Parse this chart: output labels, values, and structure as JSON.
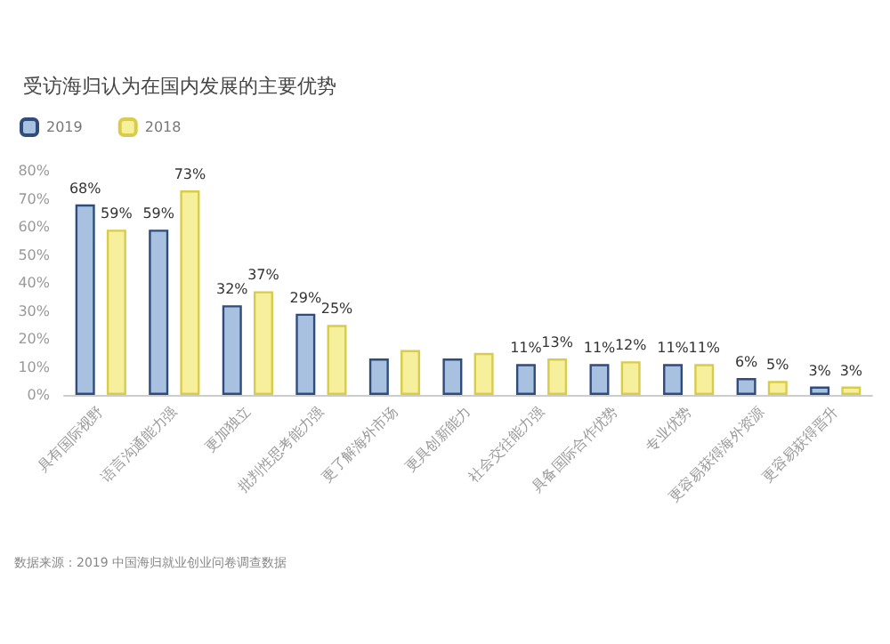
{
  "chart_data": {
    "type": "bar",
    "title": "受访海归认为在国内发展的主要优势",
    "categories": [
      "具有国际视野",
      "语言沟通能力强",
      "更加独立",
      "批判性思考能力强",
      "更了解海外市场",
      "更具创新能力",
      "社会交往能力强",
      "具备国际合作优势",
      "专业优势",
      "更容易获得海外资源",
      "更容易获得晋升"
    ],
    "series": [
      {
        "name": "2019",
        "color": "#a9c1e0",
        "values": [
          68,
          59,
          32,
          29,
          13,
          13,
          11,
          11,
          11,
          6,
          3
        ],
        "value_labels": [
          "68%",
          "59%",
          "32%",
          "29%",
          null,
          null,
          "11%",
          "11%",
          "11%",
          "6%",
          "3%"
        ]
      },
      {
        "name": "2018",
        "color": "#f6ef9c",
        "values": [
          59,
          73,
          37,
          25,
          16,
          15,
          13,
          12,
          11,
          5,
          3
        ],
        "value_labels": [
          "59%",
          "73%",
          "37%",
          "25%",
          null,
          null,
          "13%",
          "12%",
          "11%",
          "5%",
          "3%"
        ]
      }
    ],
    "ylim": [
      0,
      80
    ],
    "yticks": [
      {
        "value": 0,
        "label": "0%"
      },
      {
        "value": 10,
        "label": "10%"
      },
      {
        "value": 20,
        "label": "20%"
      },
      {
        "value": 30,
        "label": "30%"
      },
      {
        "value": 40,
        "label": "40%"
      },
      {
        "value": 50,
        "label": "50%"
      },
      {
        "value": 60,
        "label": "60%"
      },
      {
        "value": 70,
        "label": "70%"
      },
      {
        "value": 80,
        "label": "80%"
      }
    ],
    "legend": "top left",
    "grid": false,
    "annotations": [
      "数据来源：2019 中国海归就业创业问卷调查数据"
    ]
  }
}
